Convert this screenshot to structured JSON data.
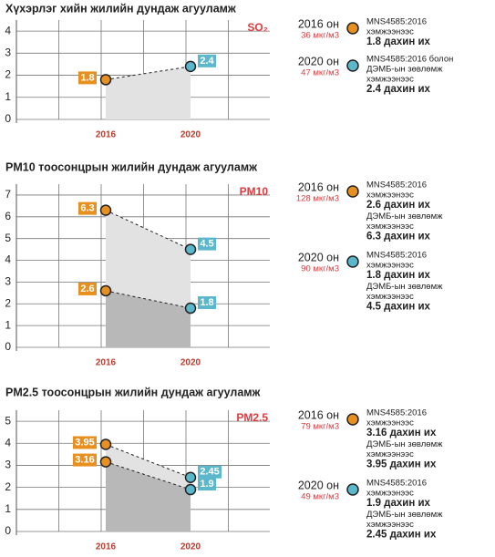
{
  "chart_data": [
    {
      "type": "line",
      "title": "Хүхэрлэг хийн жилийн дундаж агууламж",
      "pollutant": "SO₂",
      "categories": [
        "2016",
        "2020"
      ],
      "colors": [
        "#e8901f",
        "#5bb8cc"
      ],
      "series": [
        {
          "color": "#e2e2e2",
          "values": [
            1.8,
            2.4
          ],
          "value_labels": [
            "1.8",
            "2.4"
          ]
        }
      ],
      "ylim": [
        0,
        4.5
      ],
      "yticks": [
        0,
        1,
        2,
        3,
        4
      ],
      "grid": true,
      "notes": [
        {
          "year": "2016 он",
          "value": "36 мкг/м3",
          "lines": [
            {
              "text": "MNS4585:2016",
              "bold": false
            },
            {
              "text": "хэмжээнээс",
              "bold": false
            },
            {
              "text": "1.8 дахин их",
              "bold": true
            }
          ]
        },
        {
          "year": "2020 он",
          "value": "47 мкг/м3",
          "lines": [
            {
              "text": "MNS4585:2016 болон",
              "bold": false
            },
            {
              "text": "ДЭМБ-ын зөвлөмж",
              "bold": false
            },
            {
              "text": "хэмжээнээс",
              "bold": false
            },
            {
              "text": "2.4 дахин их",
              "bold": true
            }
          ]
        }
      ]
    },
    {
      "type": "line",
      "title": "PM10 тоосонцрын жилийн дундаж агууламж",
      "pollutant": "PM10",
      "categories": [
        "2016",
        "2020"
      ],
      "colors": [
        "#e8901f",
        "#5bb8cc"
      ],
      "series": [
        {
          "color": "#e2e2e2",
          "values": [
            6.3,
            4.5
          ],
          "value_labels": [
            "6.3",
            "4.5"
          ]
        },
        {
          "color": "#b8b8b8",
          "values": [
            2.6,
            1.8
          ],
          "value_labels": [
            "2.6",
            "1.8"
          ]
        }
      ],
      "ylim": [
        0,
        7.5
      ],
      "yticks": [
        0,
        1,
        2,
        3,
        4,
        5,
        6,
        7
      ],
      "grid": true,
      "notes": [
        {
          "year": "2016 он",
          "value": "128 мкг/м3",
          "lines": [
            {
              "text": "MNS4585:2016",
              "bold": false
            },
            {
              "text": "хэмжээнээс",
              "bold": false
            },
            {
              "text": "2.6 дахин их",
              "bold": true
            },
            {
              "text": "ДЭМБ-ын зөвлөмж",
              "bold": false
            },
            {
              "text": "хэмжээнээс",
              "bold": false
            },
            {
              "text": "6.3 дахин их",
              "bold": true
            }
          ]
        },
        {
          "year": "2020 он",
          "value": "90 мкг/м3",
          "lines": [
            {
              "text": "MNS4585:2016",
              "bold": false
            },
            {
              "text": "хэмжээнээс",
              "bold": false
            },
            {
              "text": "1.8 дахин их",
              "bold": true
            },
            {
              "text": "ДЭМБ-ын зөвлөмж",
              "bold": false
            },
            {
              "text": "хэмжээнээс",
              "bold": false
            },
            {
              "text": "4.5 дахин их",
              "bold": true
            }
          ]
        }
      ]
    },
    {
      "type": "line",
      "title": "PM2.5 тоосонцрын жилийн дундаж агууламж",
      "pollutant": "PM2.5",
      "categories": [
        "2016",
        "2020"
      ],
      "colors": [
        "#e8901f",
        "#5bb8cc"
      ],
      "series": [
        {
          "color": "#e2e2e2",
          "values": [
            3.95,
            2.45
          ],
          "value_labels": [
            "3.95",
            "2.45"
          ]
        },
        {
          "color": "#b8b8b8",
          "values": [
            3.16,
            1.9
          ],
          "value_labels": [
            "3.16",
            "1.9"
          ]
        }
      ],
      "ylim": [
        0,
        5.5
      ],
      "yticks": [
        0,
        1,
        2,
        3,
        4,
        5
      ],
      "grid": true,
      "notes": [
        {
          "year": "2016 он",
          "value": "79 мкг/м3",
          "lines": [
            {
              "text": "MNS4585:2016",
              "bold": false
            },
            {
              "text": "хэмжээнээс",
              "bold": false
            },
            {
              "text": "3.16 дахин их",
              "bold": true
            },
            {
              "text": "ДЭМБ-ын зөвлөмж",
              "bold": false
            },
            {
              "text": "хэмжээнээс",
              "bold": false
            },
            {
              "text": "3.95 дахин их",
              "bold": true
            }
          ]
        },
        {
          "year": "2020 он",
          "value": "49 мкг/м3",
          "lines": [
            {
              "text": "MNS4585:2016",
              "bold": false
            },
            {
              "text": "хэмжээнээс",
              "bold": false
            },
            {
              "text": "1.9 дахин их",
              "bold": true
            },
            {
              "text": "ДЭМБ-ын зөвлөмж",
              "bold": false
            },
            {
              "text": "хэмжээнээс",
              "bold": false
            },
            {
              "text": "2.45 дахин их",
              "bold": true
            }
          ]
        }
      ]
    }
  ]
}
